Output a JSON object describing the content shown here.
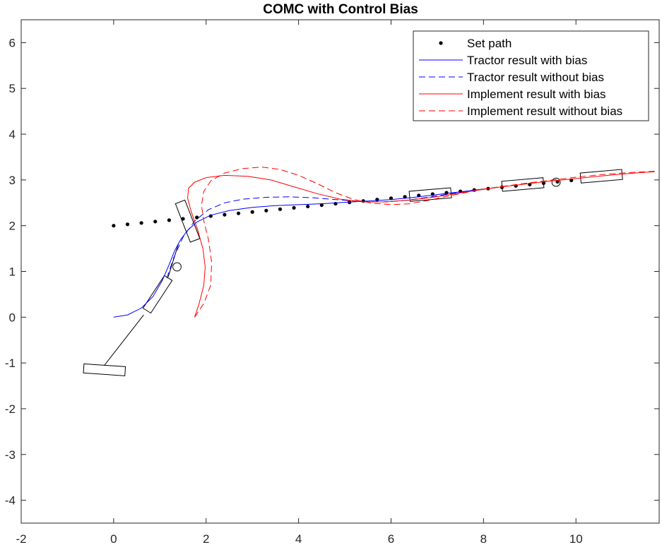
{
  "chart_data": {
    "type": "line",
    "title": "COMC with Control Bias",
    "xlabel": "",
    "ylabel": "",
    "xlim": [
      -2,
      11.8
    ],
    "ylim": [
      -4.5,
      6.5
    ],
    "xticks": [
      -2,
      0,
      2,
      4,
      6,
      8,
      10
    ],
    "yticks": [
      -4,
      -3,
      -2,
      -1,
      0,
      1,
      2,
      3,
      4,
      5,
      6
    ],
    "xtick_labels": [
      "-2",
      "0",
      "2",
      "4",
      "6",
      "8",
      "10"
    ],
    "ytick_labels": [
      "-4",
      "-3",
      "-2",
      "-1",
      "0",
      "1",
      "2",
      "3",
      "4",
      "5",
      "6"
    ],
    "grid": false,
    "legend_position": "top-right",
    "series": [
      {
        "name": "Set path",
        "style": "dots",
        "color": "#000000",
        "x": [
          0,
          0.3,
          0.6,
          0.9,
          1.2,
          1.5,
          1.8,
          2.1,
          2.4,
          2.7,
          3.0,
          3.3,
          3.6,
          3.9,
          4.2,
          4.5,
          4.8,
          5.1,
          5.4,
          5.7,
          6.0,
          6.3,
          6.6,
          6.9,
          7.2,
          7.5,
          7.8,
          8.1,
          8.4,
          8.7,
          9.0,
          9.3,
          9.6,
          9.9
        ],
        "y": [
          2.0,
          2.03,
          2.06,
          2.09,
          2.12,
          2.15,
          2.18,
          2.21,
          2.24,
          2.27,
          2.3,
          2.33,
          2.36,
          2.39,
          2.42,
          2.45,
          2.48,
          2.51,
          2.54,
          2.57,
          2.6,
          2.63,
          2.66,
          2.69,
          2.72,
          2.75,
          2.78,
          2.81,
          2.84,
          2.87,
          2.9,
          2.93,
          2.96,
          2.99
        ]
      },
      {
        "name": "Tractor result with bias",
        "style": "solid",
        "color": "#0000ff",
        "x": [
          0,
          0.3,
          0.6,
          0.85,
          1.05,
          1.2,
          1.32,
          1.45,
          1.6,
          1.8,
          2.1,
          2.5,
          3.0,
          3.5,
          4.0,
          4.5,
          5.0,
          5.5,
          6.0,
          6.5,
          7.0,
          7.5,
          8.0
        ],
        "y": [
          0,
          0.05,
          0.2,
          0.45,
          0.8,
          1.15,
          1.45,
          1.7,
          1.9,
          2.08,
          2.23,
          2.33,
          2.4,
          2.44,
          2.46,
          2.48,
          2.51,
          2.54,
          2.57,
          2.62,
          2.68,
          2.74,
          2.8
        ]
      },
      {
        "name": "Tractor result without bias",
        "style": "dashed",
        "color": "#0000ff",
        "x": [
          1.15,
          1.3,
          1.5,
          1.75,
          2.05,
          2.4,
          2.8,
          3.3,
          3.8,
          4.3,
          4.8,
          5.3,
          5.8,
          6.3,
          6.8,
          7.3,
          7.8
        ],
        "y": [
          0.85,
          1.3,
          1.75,
          2.1,
          2.35,
          2.5,
          2.58,
          2.62,
          2.63,
          2.61,
          2.57,
          2.53,
          2.52,
          2.55,
          2.62,
          2.7,
          2.78
        ]
      },
      {
        "name": "Implement result with bias",
        "style": "solid",
        "color": "#ff0000",
        "x": [
          1.75,
          1.85,
          1.95,
          1.98,
          1.93,
          1.82,
          1.68,
          1.6,
          1.62,
          1.75,
          2.0,
          2.4,
          2.9,
          3.4,
          3.9,
          4.4,
          4.9,
          5.4,
          5.9,
          6.4,
          6.9,
          7.4,
          7.9,
          8.4,
          8.9,
          9.4,
          9.9,
          10.4,
          10.9,
          11.4,
          11.7
        ],
        "y": [
          0.0,
          0.3,
          0.7,
          1.1,
          1.5,
          1.9,
          2.3,
          2.6,
          2.82,
          2.95,
          3.05,
          3.1,
          3.08,
          3.0,
          2.85,
          2.7,
          2.58,
          2.52,
          2.52,
          2.56,
          2.62,
          2.7,
          2.78,
          2.85,
          2.91,
          2.97,
          3.02,
          3.07,
          3.12,
          3.16,
          3.18
        ]
      },
      {
        "name": "Implement result without bias",
        "style": "dashed",
        "color": "#ff0000",
        "x": [
          1.75,
          1.95,
          2.1,
          2.12,
          2.05,
          1.95,
          1.9,
          1.95,
          2.1,
          2.4,
          2.8,
          3.2,
          3.6,
          4.0,
          4.4,
          4.8,
          5.2,
          5.6,
          6.0,
          6.4,
          6.8,
          7.2,
          7.6,
          8.0,
          8.5,
          9.0,
          9.5,
          10.0,
          10.5,
          11.0,
          11.7
        ],
        "y": [
          0.0,
          0.3,
          0.7,
          1.2,
          1.7,
          2.1,
          2.45,
          2.75,
          2.98,
          3.15,
          3.25,
          3.28,
          3.23,
          3.1,
          2.92,
          2.72,
          2.57,
          2.49,
          2.46,
          2.48,
          2.55,
          2.64,
          2.72,
          2.8,
          2.87,
          2.94,
          3.0,
          3.06,
          3.11,
          3.15,
          3.19
        ]
      }
    ],
    "vehicle_outlines": [
      {
        "kind": "rect",
        "cx": -0.2,
        "cy": -1.15,
        "len": 0.9,
        "wid": 0.2,
        "angle_deg": -4
      },
      {
        "kind": "rect",
        "cx": 0.95,
        "cy": 0.5,
        "len": 0.85,
        "wid": 0.2,
        "angle_deg": 57
      },
      {
        "kind": "rect",
        "cx": 1.6,
        "cy": 2.1,
        "len": 0.9,
        "wid": 0.22,
        "angle_deg": -69
      },
      {
        "kind": "rect",
        "cx": 6.85,
        "cy": 2.68,
        "len": 0.9,
        "wid": 0.22,
        "angle_deg": 5
      },
      {
        "kind": "rect",
        "cx": 8.85,
        "cy": 2.9,
        "len": 0.9,
        "wid": 0.22,
        "angle_deg": 5
      },
      {
        "kind": "rect",
        "cx": 10.55,
        "cy": 3.08,
        "len": 0.9,
        "wid": 0.22,
        "angle_deg": 5
      },
      {
        "kind": "line",
        "x1": -0.2,
        "y1": -1.05,
        "x2": 0.65,
        "y2": 0.05
      },
      {
        "kind": "line",
        "x1": 1.18,
        "y1": 0.88,
        "x2": 1.4,
        "y2": 1.6
      },
      {
        "kind": "circle",
        "cx": 1.37,
        "cy": 1.1,
        "r": 0.09
      },
      {
        "kind": "circle",
        "cx": 9.57,
        "cy": 2.95,
        "r": 0.09
      }
    ]
  }
}
